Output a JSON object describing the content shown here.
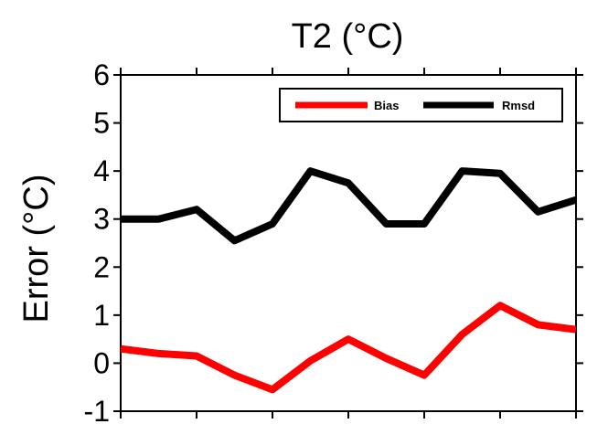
{
  "chart_data": {
    "type": "line",
    "title": "T2 (°C)",
    "xlabel": "",
    "ylabel": "Error (°C)",
    "ylim": [
      -1,
      6
    ],
    "yticks": [
      "-1",
      "0",
      "1",
      "2",
      "3",
      "4",
      "5",
      "6"
    ],
    "x": [
      1,
      2,
      3,
      4,
      5,
      6,
      7,
      8,
      9,
      10,
      11,
      12,
      13
    ],
    "xlim": [
      1,
      13
    ],
    "grid": false,
    "legend_position": "top-right",
    "series": [
      {
        "name": "Bias",
        "color": "#ff0000",
        "values": [
          0.3,
          0.2,
          0.15,
          -0.25,
          -0.55,
          0.05,
          0.5,
          0.1,
          -0.25,
          0.6,
          1.2,
          0.8,
          0.7
        ]
      },
      {
        "name": "Rmsd",
        "color": "#000000",
        "values": [
          3.0,
          3.0,
          3.2,
          2.55,
          2.9,
          4.0,
          3.75,
          2.9,
          2.9,
          4.0,
          3.95,
          3.15,
          3.4
        ]
      }
    ]
  }
}
